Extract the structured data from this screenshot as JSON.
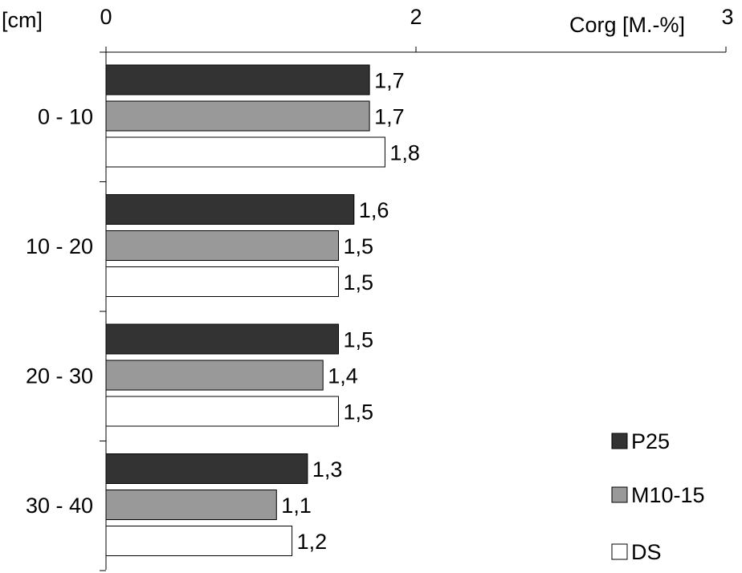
{
  "chart_data": {
    "type": "bar",
    "orientation": "horizontal",
    "xaxis_position": "top",
    "y_unit_label": "[cm]",
    "xlabel": "Corg [M.-%]",
    "xlim": [
      0,
      3
    ],
    "xticks": [
      "0",
      "2",
      "3"
    ],
    "categories": [
      "0 - 10",
      "10 - 20",
      "20 - 30",
      "30 - 40"
    ],
    "series": [
      {
        "name": "P25",
        "values": [
          1.7,
          1.6,
          1.5,
          1.3
        ],
        "labels": [
          "1,7",
          "1,6",
          "1,5",
          "1,3"
        ],
        "color": "#333333"
      },
      {
        "name": "M10-15",
        "values": [
          1.7,
          1.5,
          1.4,
          1.1
        ],
        "labels": [
          "1,7",
          "1,5",
          "1,4",
          "1,1"
        ],
        "color": "#999999"
      },
      {
        "name": "DS",
        "values": [
          1.8,
          1.5,
          1.5,
          1.2
        ],
        "labels": [
          "1,8",
          "1,5",
          "1,5",
          "1,2"
        ],
        "color": "#ffffff"
      }
    ],
    "grid": false,
    "legend_position": "bottom-right"
  }
}
